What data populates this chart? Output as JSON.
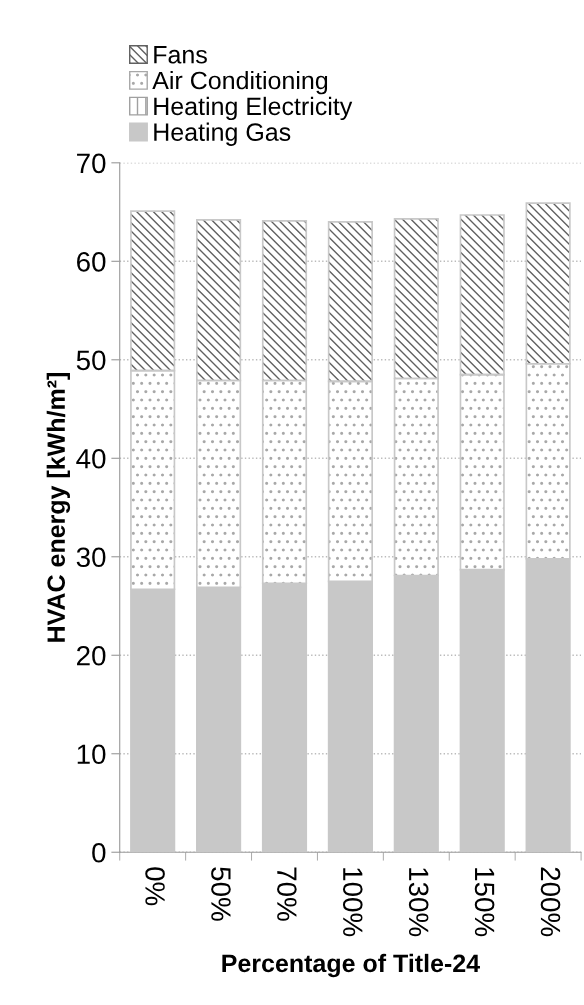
{
  "chart_data": {
    "type": "bar",
    "stacked": true,
    "xlabel": "Percentage of Title-24",
    "ylabel": "HVAC energy [kWh/m²]",
    "categories": [
      "0%",
      "50%",
      "70%",
      "100%",
      "130%",
      "150%",
      "200%"
    ],
    "series": [
      {
        "name": "Heating Gas",
        "color": "#c8c8c8",
        "values": [
          26.7,
          26.9,
          27.3,
          27.5,
          28.1,
          28.7,
          29.8
        ]
      },
      {
        "name": "Heating Electricity",
        "color": "#a0a0a0",
        "values": [
          0,
          0,
          0,
          0,
          0,
          0,
          0
        ]
      },
      {
        "name": "Air Conditioning",
        "color": "#a8a8a8",
        "values": [
          22.2,
          21.0,
          20.6,
          20.3,
          20.0,
          19.8,
          19.8
        ]
      },
      {
        "name": "Fans",
        "color": "#606060",
        "values": [
          16.2,
          16.3,
          16.2,
          16.2,
          16.2,
          16.2,
          16.3
        ]
      }
    ],
    "ylim": [
      0,
      70
    ],
    "yticks": [
      0,
      10,
      20,
      30,
      40,
      50,
      60,
      70
    ],
    "grid": "y",
    "legend": "top left"
  }
}
